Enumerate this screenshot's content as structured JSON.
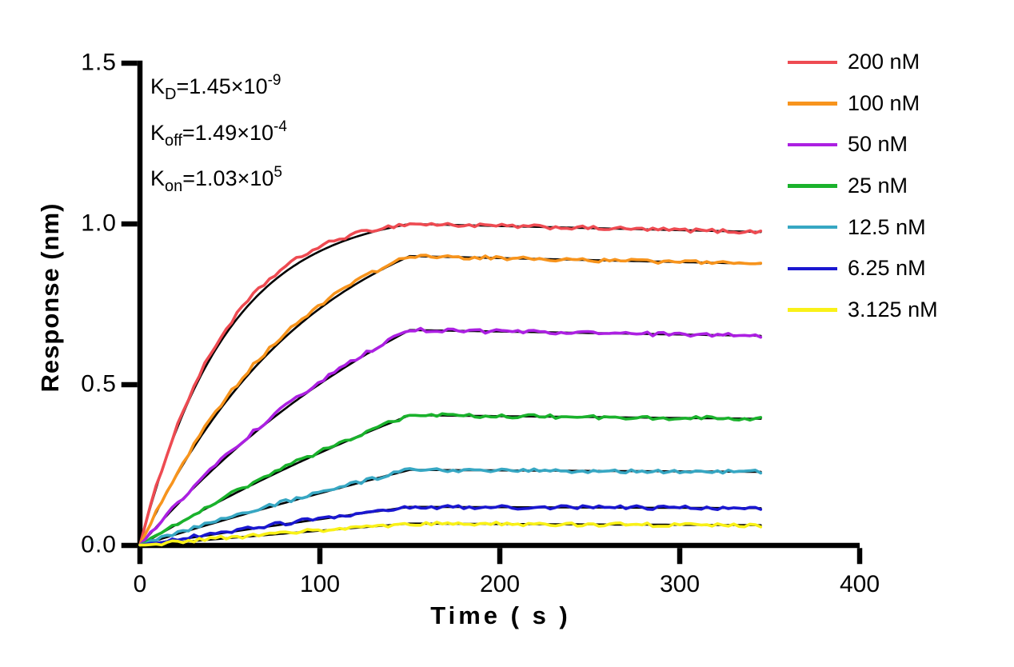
{
  "chart_data": {
    "type": "line",
    "title": "",
    "xlabel": "Time ( s )",
    "ylabel": "Response (nm)",
    "xlim": [
      0,
      400
    ],
    "ylim": [
      0,
      1.5
    ],
    "x_tick_values": [
      0,
      100,
      200,
      300,
      400
    ],
    "x_tick_labels": [
      "0",
      "100",
      "200",
      "300",
      "400"
    ],
    "y_tick_values": [
      0.0,
      0.5,
      1.0,
      1.5
    ],
    "y_tick_labels": [
      "0.0",
      "0.5",
      "1.0",
      "1.5"
    ],
    "grid": false,
    "legend_position": "top-right",
    "axis_color": "#000000",
    "fit_color": "#000000",
    "association_end_s": 150,
    "curve_end_s": 345,
    "kinetics": {
      "KD_M": 1.45e-09,
      "koff_per_s": 0.000149,
      "kon_per_M_s": 103000.0
    },
    "series": [
      {
        "label": "200 nM",
        "conc_nM": 200,
        "color": "#EE4B52",
        "response_at_150s": 1.0,
        "response_at_345s": 0.975,
        "kobs_per_s": 0.02075,
        "fit_dev": 0.016
      },
      {
        "label": "100 nM",
        "conc_nM": 100,
        "color": "#F7941D",
        "response_at_150s": 0.9,
        "response_at_345s": 0.876,
        "kobs_per_s": 0.01045,
        "fit_dev": 0.012
      },
      {
        "label": "50 nM",
        "conc_nM": 50,
        "color": "#AC20E2",
        "response_at_150s": 0.67,
        "response_at_345s": 0.652,
        "kobs_per_s": 0.0053,
        "fit_dev": 0.007
      },
      {
        "label": "25 nM",
        "conc_nM": 25,
        "color": "#1AB22C",
        "response_at_150s": 0.405,
        "response_at_345s": 0.394,
        "kobs_per_s": 0.00272,
        "fit_dev": 0.005
      },
      {
        "label": "12.5 nM",
        "conc_nM": 12.5,
        "color": "#37A7C3",
        "response_at_150s": 0.235,
        "response_at_345s": 0.229,
        "kobs_per_s": 0.00144,
        "fit_dev": 0.004
      },
      {
        "label": "6.25 nM",
        "conc_nM": 6.25,
        "color": "#1A17D0",
        "response_at_150s": 0.12,
        "response_at_345s": 0.116,
        "kobs_per_s": 0.00079,
        "fit_dev": 0.003
      },
      {
        "label": "3.125 nM",
        "conc_nM": 3.125,
        "color": "#F9F118",
        "response_at_150s": 0.068,
        "response_at_345s": 0.063,
        "kobs_per_s": 0.00047,
        "fit_dev": 0.002
      }
    ]
  },
  "annotations": {
    "kinetics_lines": [
      {
        "base": "K",
        "sub": "D",
        "mid": "=1.45×10",
        "sup": "-9"
      },
      {
        "base": "K",
        "sub": "off",
        "mid": "=1.49×10",
        "sup": "-4"
      },
      {
        "base": "K",
        "sub": "on",
        "mid": "=1.03×10",
        "sup": "5"
      }
    ]
  }
}
